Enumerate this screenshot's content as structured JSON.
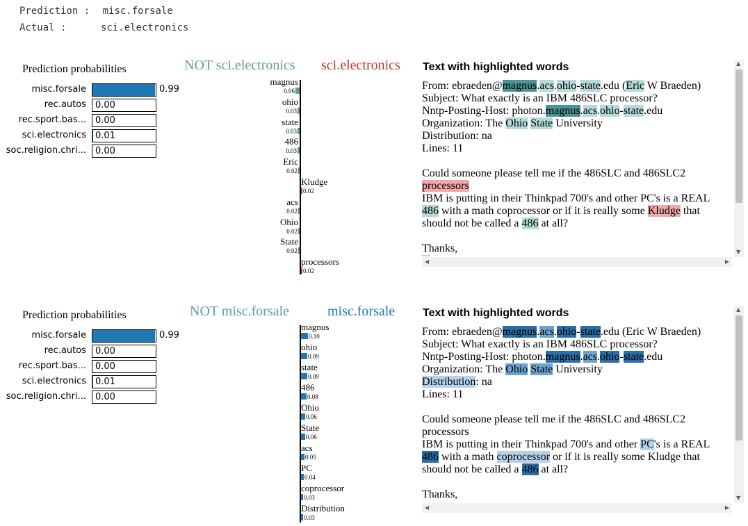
{
  "header": {
    "prediction_label": "Prediction :",
    "prediction_value": "misc.forsale",
    "actual_label": "Actual :",
    "actual_value": "sci.electronics"
  },
  "colors": {
    "prob_bar": "#1f77b4",
    "not_class_teal": "#5f9ea0",
    "class_red": "#c0392b",
    "class_blue": "#1f77b4",
    "hl_teal_dark": "#4a9496",
    "hl_teal_light": "#b6d9d9",
    "hl_red": "#f0a8a8",
    "hl_blue_dark": "#2a6fa8",
    "hl_blue_light": "#b5d2ea"
  },
  "panels": [
    {
      "probabilities": {
        "title": "Prediction probabilities",
        "rows": [
          {
            "label": "misc.forsale",
            "value": "0.99",
            "fraction": 0.99
          },
          {
            "label": "rec.autos",
            "value": "0.00",
            "fraction": 0.0
          },
          {
            "label": "rec.sport.bas...",
            "value": "0.00",
            "fraction": 0.0
          },
          {
            "label": "sci.electronics",
            "value": "0.01",
            "fraction": 0.01
          },
          {
            "label": "soc.religion.chri...",
            "value": "0.00",
            "fraction": 0.0
          }
        ]
      },
      "not_class": "NOT sci.electronics",
      "class": "sci.electronics",
      "words": [
        {
          "word": "magnus",
          "value": "0.06",
          "weight": -0.06
        },
        {
          "word": "ohio",
          "value": "0.03",
          "weight": -0.03
        },
        {
          "word": "state",
          "value": "0.03",
          "weight": -0.03
        },
        {
          "word": "486",
          "value": "0.03",
          "weight": -0.03
        },
        {
          "word": "Eric",
          "value": "0.02",
          "weight": -0.02
        },
        {
          "word": "Kludge",
          "value": "0.02",
          "weight": 0.02
        },
        {
          "word": "acs",
          "value": "0.02",
          "weight": -0.02
        },
        {
          "word": "Ohio",
          "value": "0.02",
          "weight": -0.02
        },
        {
          "word": "State",
          "value": "0.02",
          "weight": -0.02
        },
        {
          "word": "processors",
          "value": "0.02",
          "weight": 0.02
        }
      ],
      "text_title": "Text with highlighted words"
    },
    {
      "probabilities": {
        "title": "Prediction probabilities",
        "rows": [
          {
            "label": "misc.forsale",
            "value": "0.99",
            "fraction": 0.99
          },
          {
            "label": "rec.autos",
            "value": "0.00",
            "fraction": 0.0
          },
          {
            "label": "rec.sport.bas...",
            "value": "0.00",
            "fraction": 0.0
          },
          {
            "label": "sci.electronics",
            "value": "0.01",
            "fraction": 0.01
          },
          {
            "label": "soc.religion.chri...",
            "value": "0.00",
            "fraction": 0.0
          }
        ]
      },
      "not_class": "NOT misc.forsale",
      "class": "misc.forsale",
      "words": [
        {
          "word": "magnus",
          "value": "0.10",
          "weight": 0.1
        },
        {
          "word": "ohio",
          "value": "0.09",
          "weight": 0.09
        },
        {
          "word": "state",
          "value": "0.09",
          "weight": 0.09
        },
        {
          "word": "486",
          "value": "0.08",
          "weight": 0.08
        },
        {
          "word": "Ohio",
          "value": "0.06",
          "weight": 0.06
        },
        {
          "word": "State",
          "value": "0.06",
          "weight": 0.06
        },
        {
          "word": "acs",
          "value": "0.05",
          "weight": 0.05
        },
        {
          "word": "PC",
          "value": "0.04",
          "weight": 0.04
        },
        {
          "word": "coprocessor",
          "value": "0.03",
          "weight": 0.03
        },
        {
          "word": "Distribution",
          "value": "0.03",
          "weight": 0.03
        }
      ],
      "text_title": "Text with highlighted words"
    }
  ],
  "text_lines_1": [
    [
      [
        "From: ebraeden@",
        ""
      ],
      [
        "magnus",
        "td"
      ],
      [
        ".",
        ""
      ],
      [
        "acs",
        "tl"
      ],
      [
        ".",
        ""
      ],
      [
        "ohio",
        "tl"
      ],
      [
        "-",
        ""
      ],
      [
        "state",
        "tl"
      ],
      [
        ".edu (",
        ""
      ],
      [
        "Eric",
        "tl"
      ],
      [
        " W Braeden)",
        ""
      ]
    ],
    [
      [
        "Subject: What exactly is an IBM 486SLC processor?",
        ""
      ]
    ],
    [
      [
        "Nntp-Posting-Host: photon.",
        ""
      ],
      [
        "magnus",
        "td"
      ],
      [
        ".",
        ""
      ],
      [
        "acs",
        "tl"
      ],
      [
        ".",
        ""
      ],
      [
        "ohio",
        "tl"
      ],
      [
        "-",
        ""
      ],
      [
        "state",
        "tl"
      ],
      [
        ".edu",
        ""
      ]
    ],
    [
      [
        "Organization: The ",
        ""
      ],
      [
        "Ohio",
        "tl"
      ],
      [
        " ",
        ""
      ],
      [
        "State",
        "tl"
      ],
      [
        " University",
        ""
      ]
    ],
    [
      [
        "Distribution: na",
        ""
      ]
    ],
    [
      [
        "Lines: 11",
        ""
      ]
    ],
    [
      [
        "",
        ""
      ]
    ],
    [
      [
        "Could someone please tell me if the 486SLC and 486SLC2",
        ""
      ]
    ],
    [
      [
        "processors",
        "r"
      ]
    ],
    [
      [
        "IBM is putting in their Thinkpad 700's and other PC's is a REAL",
        ""
      ]
    ],
    [
      [
        "486",
        "tl"
      ],
      [
        " with a math coprocessor or if it is really some ",
        ""
      ],
      [
        "Kludge",
        "r"
      ],
      [
        " that",
        ""
      ]
    ],
    [
      [
        "should not be called a ",
        ""
      ],
      [
        "486",
        "tl"
      ],
      [
        " at all?",
        ""
      ]
    ],
    [
      [
        "",
        ""
      ]
    ],
    [
      [
        "Thanks,",
        ""
      ]
    ],
    [
      [
        "   ",
        "tl"
      ]
    ]
  ],
  "text_lines_2": [
    [
      [
        "From: ebraeden@",
        ""
      ],
      [
        "magnus",
        "bd"
      ],
      [
        ".",
        ""
      ],
      [
        "acs",
        "bm"
      ],
      [
        ".",
        ""
      ],
      [
        "ohio",
        "bd"
      ],
      [
        "-",
        ""
      ],
      [
        "state",
        "bd"
      ],
      [
        ".edu (Eric W Braeden)",
        ""
      ]
    ],
    [
      [
        "Subject: What exactly is an IBM 486SLC processor?",
        ""
      ]
    ],
    [
      [
        "Nntp-Posting-Host: photon.",
        ""
      ],
      [
        "magnus",
        "bd"
      ],
      [
        ".",
        ""
      ],
      [
        "acs",
        "bm"
      ],
      [
        ".",
        ""
      ],
      [
        "ohio",
        "bd"
      ],
      [
        "-",
        ""
      ],
      [
        "state",
        "bd"
      ],
      [
        ".edu",
        ""
      ]
    ],
    [
      [
        "Organization: The ",
        ""
      ],
      [
        "Ohio",
        "bm"
      ],
      [
        " ",
        ""
      ],
      [
        "State",
        "bm"
      ],
      [
        " University",
        ""
      ]
    ],
    [
      [
        "Distribution",
        "bl"
      ],
      [
        ": na",
        ""
      ]
    ],
    [
      [
        "Lines: 11",
        ""
      ]
    ],
    [
      [
        "",
        ""
      ]
    ],
    [
      [
        "Could someone please tell me if the 486SLC and 486SLC2",
        ""
      ]
    ],
    [
      [
        "processors",
        ""
      ]
    ],
    [
      [
        "IBM is putting in their Thinkpad 700's and other ",
        ""
      ],
      [
        "PC",
        "bl"
      ],
      [
        "'s is a REAL",
        ""
      ]
    ],
    [
      [
        "486",
        "bd"
      ],
      [
        " with a math ",
        ""
      ],
      [
        "coprocessor",
        "bl"
      ],
      [
        " or if it is really some Kludge that",
        ""
      ]
    ],
    [
      [
        "should not be called a ",
        ""
      ],
      [
        "486",
        "bd"
      ],
      [
        " at all?",
        ""
      ]
    ],
    [
      [
        "",
        ""
      ]
    ],
    [
      [
        "Thanks,",
        ""
      ]
    ]
  ]
}
